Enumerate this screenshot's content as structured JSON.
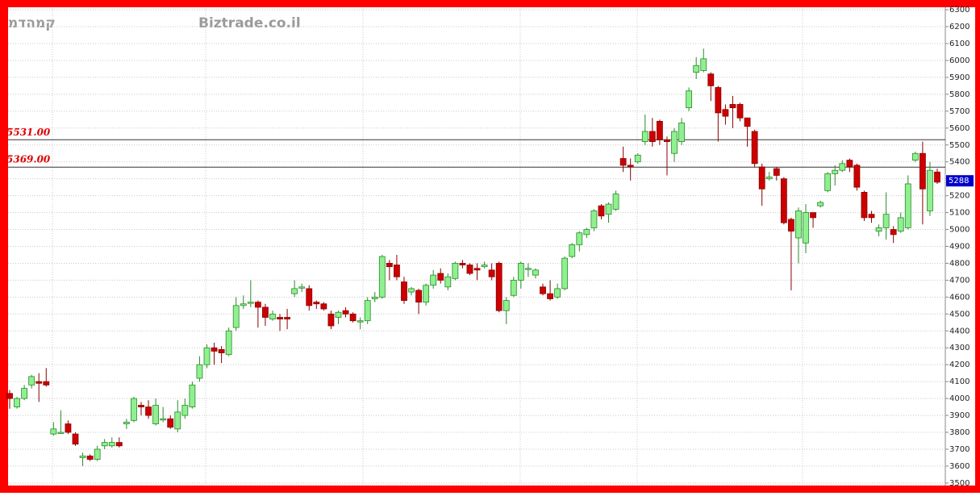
{
  "chart_data": {
    "type": "candlestick",
    "title": "קמהדמ",
    "watermark": "Biztrade.co.il",
    "open": [
      4030,
      3950,
      4000,
      4080,
      4100,
      4100,
      3790,
      3800,
      3850,
      3790,
      3650,
      3660,
      3640,
      3720,
      3720,
      3740,
      3850,
      3870,
      3960,
      3950,
      3850,
      3880,
      3880,
      3820,
      3900,
      3950,
      4120,
      4200,
      4300,
      4290,
      4260,
      4420,
      4550,
      4570,
      4570,
      4540,
      4470,
      4480,
      4480,
      4620,
      4660,
      4650,
      4570,
      4560,
      4500,
      4480,
      4520,
      4500,
      4460,
      4460,
      4590,
      4600,
      4800,
      4790,
      4690,
      4630,
      4640,
      4570,
      4670,
      4740,
      4660,
      4710,
      4800,
      4790,
      4770,
      4780,
      4760,
      4800,
      4520,
      4610,
      4700,
      4770,
      4730,
      4660,
      4620,
      4600,
      4650,
      4840,
      4910,
      4970,
      5010,
      5140,
      5090,
      5120,
      5420,
      5380,
      5400,
      5520,
      5580,
      5640,
      5530,
      5450,
      5520,
      5720,
      5930,
      5940,
      5920,
      5840,
      5710,
      5740,
      5740,
      5660,
      5580,
      5370,
      5300,
      5360,
      5300,
      5060,
      4950,
      4920,
      5100,
      5140,
      5230,
      5330,
      5350,
      5410,
      5380,
      5220,
      5090,
      4990,
      5010,
      5000,
      4990,
      5010,
      5410,
      5450,
      5110,
      5340
    ],
    "high": [
      4050,
      4010,
      4080,
      4140,
      4150,
      4180,
      3860,
      3930,
      3870,
      3800,
      3680,
      3670,
      3720,
      3760,
      3770,
      3770,
      3880,
      4010,
      3980,
      3990,
      4000,
      3950,
      3900,
      3990,
      4000,
      4100,
      4250,
      4320,
      4330,
      4310,
      4420,
      4600,
      4610,
      4700,
      4580,
      4560,
      4520,
      4500,
      4530,
      4700,
      4680,
      4670,
      4580,
      4570,
      4520,
      4520,
      4540,
      4510,
      4480,
      4600,
      4630,
      4850,
      4820,
      4850,
      4720,
      4660,
      4650,
      4680,
      4760,
      4770,
      4740,
      4810,
      4820,
      4800,
      4800,
      4810,
      4800,
      4810,
      4600,
      4720,
      4810,
      4800,
      4770,
      4680,
      4700,
      4680,
      4840,
      4920,
      4990,
      5010,
      5120,
      5150,
      5160,
      5230,
      5490,
      5420,
      5450,
      5680,
      5660,
      5650,
      5550,
      5600,
      5660,
      5840,
      6020,
      6070,
      5930,
      5850,
      5740,
      5790,
      5750,
      5660,
      5590,
      5390,
      5340,
      5370,
      5310,
      5070,
      5130,
      5150,
      5100,
      5170,
      5340,
      5380,
      5410,
      5420,
      5390,
      5230,
      5110,
      5030,
      5220,
      5020,
      5100,
      5320,
      5460,
      5520,
      5400,
      5360
    ],
    "low": [
      3940,
      3940,
      3990,
      4060,
      3980,
      4070,
      3780,
      3790,
      3790,
      3720,
      3600,
      3630,
      3630,
      3700,
      3710,
      3710,
      3820,
      3860,
      3900,
      3880,
      3840,
      3860,
      3820,
      3800,
      3880,
      3940,
      4100,
      4180,
      4200,
      4210,
      4250,
      4400,
      4530,
      4540,
      4420,
      4430,
      4460,
      4400,
      4410,
      4600,
      4630,
      4520,
      4530,
      4520,
      4410,
      4440,
      4480,
      4450,
      4410,
      4440,
      4570,
      4590,
      4700,
      4700,
      4560,
      4610,
      4500,
      4550,
      4650,
      4680,
      4640,
      4700,
      4770,
      4730,
      4700,
      4770,
      4700,
      4510,
      4440,
      4600,
      4650,
      4720,
      4710,
      4610,
      4580,
      4590,
      4640,
      4830,
      4870,
      4950,
      4990,
      5060,
      5040,
      5110,
      5340,
      5290,
      5390,
      5500,
      5490,
      5500,
      5320,
      5400,
      5500,
      5700,
      5890,
      5930,
      5760,
      5520,
      5620,
      5600,
      5640,
      5490,
      5370,
      5140,
      5290,
      5290,
      5030,
      4640,
      4800,
      4860,
      5010,
      5130,
      5220,
      5260,
      5340,
      5340,
      5230,
      5050,
      5040,
      4960,
      4940,
      4920,
      4980,
      5000,
      5400,
      5030,
      5080,
      5270
    ],
    "close": [
      4000,
      4000,
      4060,
      4130,
      4090,
      4080,
      3820,
      3800,
      3800,
      3730,
      3660,
      3640,
      3700,
      3740,
      3740,
      3720,
      3860,
      4000,
      3950,
      3900,
      3960,
      3880,
      3830,
      3920,
      3960,
      4080,
      4200,
      4300,
      4280,
      4270,
      4400,
      4550,
      4560,
      4570,
      4540,
      4480,
      4500,
      4470,
      4470,
      4650,
      4660,
      4550,
      4560,
      4530,
      4430,
      4510,
      4500,
      4460,
      4460,
      4580,
      4600,
      4840,
      4780,
      4720,
      4580,
      4650,
      4570,
      4670,
      4730,
      4700,
      4720,
      4800,
      4790,
      4740,
      4760,
      4790,
      4720,
      4520,
      4580,
      4700,
      4800,
      4770,
      4760,
      4620,
      4590,
      4650,
      4830,
      4910,
      4980,
      5000,
      5110,
      5080,
      5150,
      5210,
      5380,
      5370,
      5440,
      5580,
      5520,
      5530,
      5520,
      5580,
      5630,
      5820,
      5970,
      6010,
      5850,
      5690,
      5670,
      5720,
      5660,
      5610,
      5390,
      5240,
      5310,
      5320,
      5040,
      4990,
      5110,
      5100,
      5070,
      5160,
      5330,
      5350,
      5390,
      5370,
      5250,
      5070,
      5070,
      5010,
      5090,
      4970,
      5070,
      5270,
      5450,
      5240,
      5350,
      5280
    ],
    "up_color": "#8ff08f",
    "down_color": "#cc0000",
    "ylim": [
      3490,
      6310
    ],
    "yticks": [
      3500,
      3600,
      3700,
      3800,
      3900,
      4000,
      4100,
      4200,
      4300,
      4400,
      4500,
      4600,
      4700,
      4800,
      4900,
      5000,
      5100,
      5200,
      5300,
      5400,
      5500,
      5600,
      5700,
      5800,
      5900,
      6000,
      6100,
      6200,
      6300
    ],
    "grid": true,
    "hlines": [
      {
        "value": 5531,
        "label": "5531.00"
      },
      {
        "value": 5369,
        "label": "5369.00"
      }
    ],
    "last_value": 5288
  }
}
